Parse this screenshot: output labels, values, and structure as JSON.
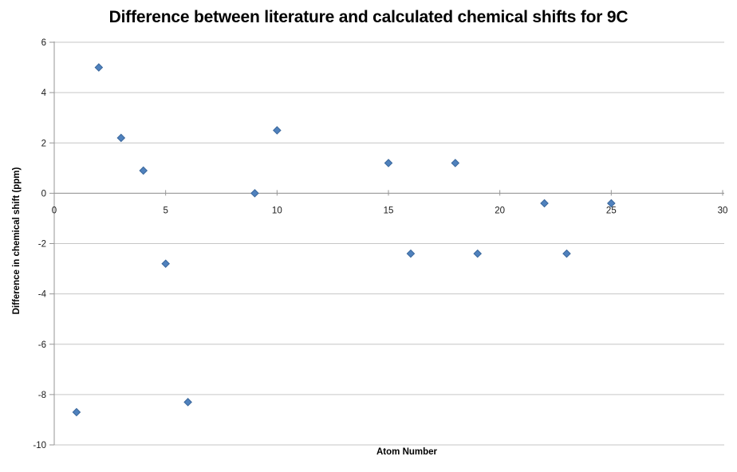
{
  "chart_data": {
    "type": "scatter",
    "title": "Difference between literature and calculated chemical shifts for 9C",
    "xlabel": "Atom Number",
    "ylabel": "Difference in chemical shift (ppm)",
    "xlim": [
      0,
      30
    ],
    "ylim": [
      -10,
      6
    ],
    "x_ticks": [
      0,
      5,
      10,
      15,
      20,
      25,
      30
    ],
    "y_ticks": [
      6,
      4,
      2,
      0,
      -2,
      -4,
      -6,
      -8,
      -10
    ],
    "grid": "horizontal-major-only",
    "legend": "none",
    "marker": "diamond",
    "points": [
      {
        "x": 1,
        "y": -8.7
      },
      {
        "x": 2,
        "y": 5.0
      },
      {
        "x": 3,
        "y": 2.2
      },
      {
        "x": 4,
        "y": 0.9
      },
      {
        "x": 5,
        "y": -2.8
      },
      {
        "x": 6,
        "y": -8.3
      },
      {
        "x": 9,
        "y": 0.0
      },
      {
        "x": 10,
        "y": 2.5
      },
      {
        "x": 15,
        "y": 1.2
      },
      {
        "x": 16,
        "y": -2.4
      },
      {
        "x": 18,
        "y": 1.2
      },
      {
        "x": 19,
        "y": -2.4
      },
      {
        "x": 22,
        "y": -0.4
      },
      {
        "x": 23,
        "y": -2.4
      },
      {
        "x": 25,
        "y": -0.4
      }
    ],
    "colors": {
      "marker_fill": "#4F81BD",
      "marker_stroke": "#3A679C",
      "gridline": "#C6C6C6",
      "axis": "#969696",
      "text": "#1a1a1a",
      "background": "#ffffff"
    }
  }
}
